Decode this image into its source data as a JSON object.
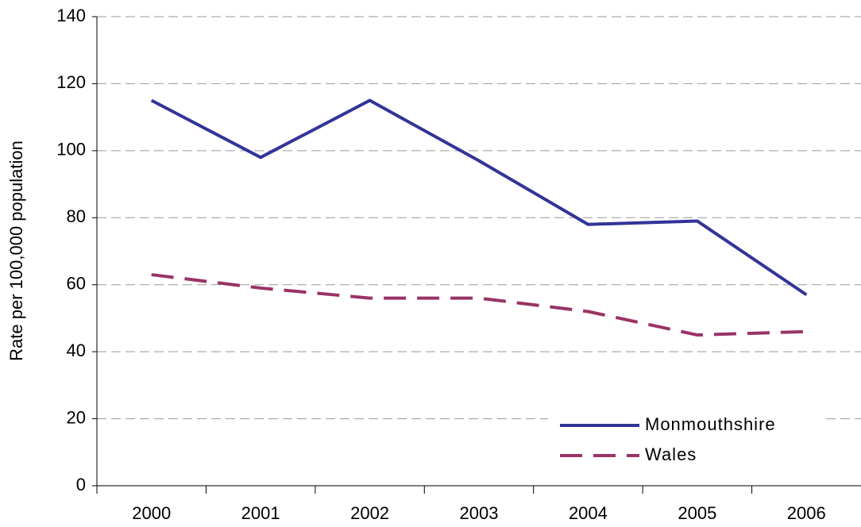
{
  "chart_data": {
    "type": "line",
    "y_label": "Rate per 100,000 population",
    "categories": [
      "2000",
      "2001",
      "2002",
      "2003",
      "2004",
      "2005",
      "2006"
    ],
    "series": [
      {
        "name": "Monmouthshire",
        "color": "#333399",
        "dash": "solid",
        "values": [
          115,
          98,
          115,
          97,
          78,
          79,
          57
        ]
      },
      {
        "name": "Wales",
        "color": "#993366",
        "dash": "dashed",
        "values": [
          63,
          59,
          56,
          56,
          52,
          45,
          46
        ]
      }
    ],
    "ylim": [
      0,
      140
    ],
    "yticks": [
      0,
      20,
      40,
      60,
      80,
      100,
      120,
      140
    ],
    "grid": true,
    "legend": "lower right"
  }
}
